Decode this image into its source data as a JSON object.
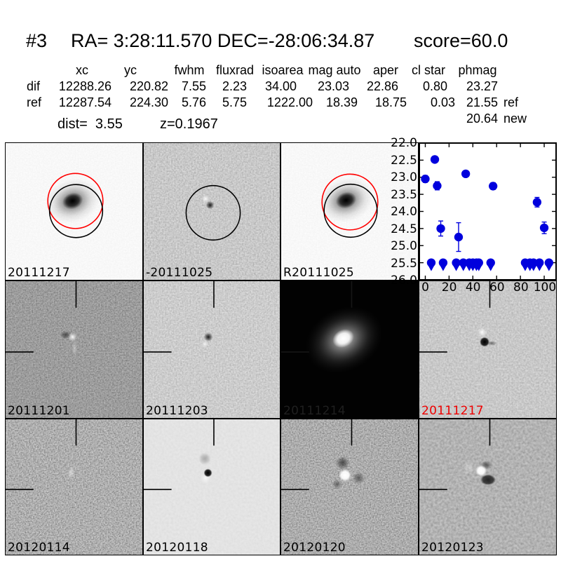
{
  "header": {
    "index": "#3",
    "ra": "RA= 3:28:11.570",
    "dec": "DEC=-28:06:34.87",
    "score": "score=60.0"
  },
  "table": {
    "headers": [
      "xc",
      "yc",
      "fwhm",
      "fluxrad",
      "isoarea",
      "mag auto",
      "aper",
      "cl star",
      "phmag"
    ],
    "rows": [
      {
        "label": "dif",
        "values": [
          "12288.26",
          "220.82",
          "7.55",
          "2.23",
          "34.00",
          "23.03",
          "22.86",
          "0.80",
          "23.27"
        ],
        "suffix": ""
      },
      {
        "label": "ref",
        "values": [
          "12287.54",
          "224.30",
          "5.76",
          "5.75",
          "1222.00",
          "18.39",
          "18.75",
          "0.03",
          "21.55"
        ],
        "suffix": "ref"
      }
    ],
    "extra_value": "20.64",
    "extra_suffix": "new"
  },
  "footer": {
    "dist": "dist=  3.55",
    "z": "z=0.1967"
  },
  "panels": [
    {
      "label": "20111217",
      "label_color": "#000000"
    },
    {
      "label": "-20111025",
      "label_color": "#000000"
    },
    {
      "label": "R20111025",
      "label_color": "#000000"
    },
    {
      "label": "",
      "label_color": "#000000"
    },
    {
      "label": "20111201",
      "label_color": "#000000"
    },
    {
      "label": "20111203",
      "label_color": "#000000"
    },
    {
      "label": "20111214",
      "label_color": "#1f1f1f"
    },
    {
      "label": "20111217",
      "label_color": "#ee0000"
    },
    {
      "label": "20120114",
      "label_color": "#000000"
    },
    {
      "label": "20120118",
      "label_color": "#000000"
    },
    {
      "label": "20120120",
      "label_color": "#000000"
    },
    {
      "label": "20120123",
      "label_color": "#000000"
    }
  ],
  "chart_data": {
    "type": "scatter",
    "title": "",
    "xlabel": "",
    "ylabel": "",
    "xlim": [
      -5,
      110
    ],
    "ylim": [
      26.0,
      22.0
    ],
    "xticks": [
      0,
      20,
      40,
      60,
      80,
      100
    ],
    "yticks": [
      22.0,
      22.5,
      23.0,
      23.5,
      24.0,
      24.5,
      25.0,
      25.5,
      26.0
    ],
    "grid": false,
    "legend": "none",
    "marker_color": "#0000dd",
    "series": [
      {
        "name": "detections",
        "marker": "circle",
        "color": "#0000dd",
        "points": [
          {
            "x": 0,
            "y": 23.05,
            "err": 0.1
          },
          {
            "x": 8,
            "y": 22.48,
            "err": 0.06
          },
          {
            "x": 10,
            "y": 23.25,
            "err": 0.12
          },
          {
            "x": 13,
            "y": 24.5,
            "err": 0.22
          },
          {
            "x": 28,
            "y": 24.75,
            "err": 0.42
          },
          {
            "x": 34,
            "y": 22.9,
            "err": 0.06
          },
          {
            "x": 57,
            "y": 23.26,
            "err": 0.1
          },
          {
            "x": 94,
            "y": 23.73,
            "err": 0.14
          },
          {
            "x": 100,
            "y": 24.48,
            "err": 0.17
          }
        ]
      },
      {
        "name": "upper-limits",
        "marker": "limit",
        "color": "#0000dd",
        "points": [
          {
            "x": 5,
            "y": 25.5
          },
          {
            "x": 15,
            "y": 25.5
          },
          {
            "x": 26,
            "y": 25.5
          },
          {
            "x": 32,
            "y": 25.5
          },
          {
            "x": 37,
            "y": 25.5
          },
          {
            "x": 40,
            "y": 25.5
          },
          {
            "x": 43,
            "y": 25.5
          },
          {
            "x": 45,
            "y": 25.5
          },
          {
            "x": 55,
            "y": 25.5
          },
          {
            "x": 84,
            "y": 25.5
          },
          {
            "x": 88,
            "y": 25.5
          },
          {
            "x": 91,
            "y": 25.5
          },
          {
            "x": 96,
            "y": 25.5
          },
          {
            "x": 104,
            "y": 25.5
          }
        ]
      }
    ]
  }
}
